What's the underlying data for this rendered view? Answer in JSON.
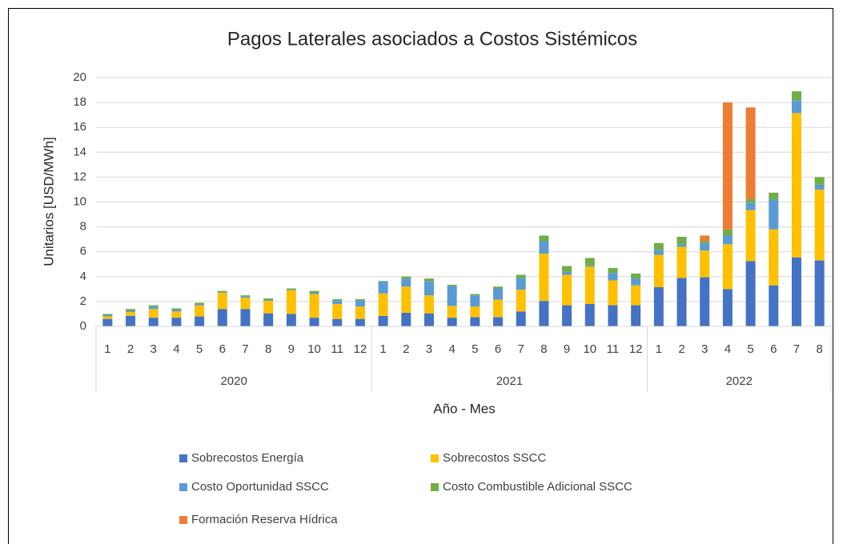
{
  "chart_data": {
    "type": "stacked_bar",
    "title": "Pagos Laterales asociados a Costos Sistémicos",
    "y_label": "Unitarios [USD/MWh]",
    "x_label": "Año - Mes",
    "groups": [
      {
        "label": "2020",
        "categories": [
          "1",
          "2",
          "3",
          "4",
          "5",
          "6",
          "7",
          "8",
          "9",
          "10",
          "11",
          "12"
        ]
      },
      {
        "label": "2021",
        "categories": [
          "1",
          "2",
          "3",
          "4",
          "5",
          "6",
          "7",
          "8",
          "9",
          "10",
          "11",
          "12"
        ]
      },
      {
        "label": "2022",
        "categories": [
          "1",
          "2",
          "3",
          "4",
          "5",
          "6",
          "7",
          "8"
        ]
      }
    ],
    "ylim": [
      0,
      20
    ],
    "yticks": [
      0,
      2,
      4,
      6,
      8,
      10,
      12,
      14,
      16,
      18,
      20
    ],
    "grid": true,
    "legend": "bottom",
    "series": [
      {
        "name": "Sobrecostos Energía",
        "color": "#4472c4",
        "values": [
          0.6,
          0.85,
          0.7,
          0.7,
          0.8,
          1.4,
          1.4,
          1.05,
          1.0,
          0.7,
          0.6,
          0.6,
          0.85,
          1.1,
          1.05,
          0.7,
          0.75,
          0.75,
          1.2,
          2.05,
          1.7,
          1.8,
          1.7,
          1.7,
          3.15,
          3.9,
          3.95,
          3.0,
          5.25,
          3.3,
          5.55,
          5.3
        ]
      },
      {
        "name": "Sobrecostos SSCC",
        "color": "#ffc000",
        "values": [
          0.2,
          0.3,
          0.7,
          0.5,
          0.9,
          1.3,
          0.9,
          1.0,
          1.9,
          1.9,
          1.2,
          1.0,
          1.8,
          2.1,
          1.45,
          0.95,
          0.85,
          1.4,
          1.75,
          3.8,
          2.45,
          3.0,
          2.0,
          1.6,
          2.6,
          2.5,
          2.15,
          3.6,
          4.1,
          4.5,
          11.6,
          5.7
        ]
      },
      {
        "name": "Costo Oportunidad SSCC",
        "color": "#5b9bd5",
        "values": [
          0.1,
          0.1,
          0.2,
          0.15,
          0.1,
          0.05,
          0.1,
          0.1,
          0.05,
          0.1,
          0.3,
          0.5,
          0.95,
          0.65,
          1.15,
          1.6,
          0.9,
          0.9,
          0.95,
          1.0,
          0.25,
          0.1,
          0.6,
          0.55,
          0.4,
          0.2,
          0.6,
          0.7,
          0.6,
          2.4,
          1.0,
          0.4
        ]
      },
      {
        "name": "Costo Combustible Adicional SSCC",
        "color": "#70ad47",
        "values": [
          0.1,
          0.15,
          0.1,
          0.1,
          0.1,
          0.1,
          0.1,
          0.1,
          0.1,
          0.15,
          0.1,
          0.1,
          0.05,
          0.15,
          0.2,
          0.1,
          0.1,
          0.15,
          0.25,
          0.45,
          0.45,
          0.6,
          0.4,
          0.4,
          0.55,
          0.6,
          0.15,
          0.5,
          0.3,
          0.55,
          0.75,
          0.6
        ]
      },
      {
        "name": "Formación Reserva Hídrica",
        "color": "#ed7d31",
        "values": [
          0,
          0,
          0,
          0,
          0,
          0,
          0,
          0,
          0,
          0,
          0,
          0,
          0,
          0,
          0,
          0,
          0,
          0,
          0,
          0,
          0,
          0,
          0,
          0,
          0,
          0,
          0.45,
          10.2,
          7.35,
          0,
          0,
          0
        ]
      }
    ]
  }
}
